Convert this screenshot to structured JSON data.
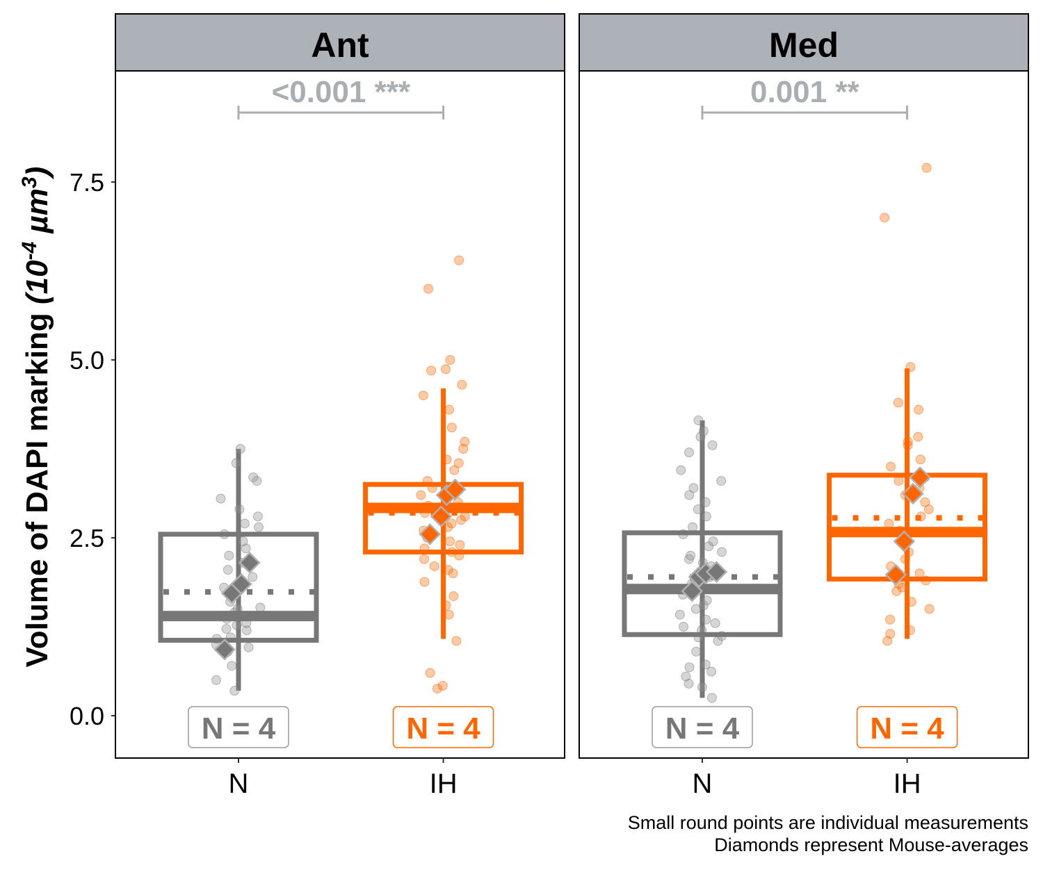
{
  "y_axis": {
    "label_main": "Volume of DAPI marking ",
    "label_unit_pre": "(10",
    "label_unit_exp1": "-4",
    "label_unit_mid": " µm",
    "label_unit_exp2": "3",
    "label_unit_post": ")",
    "ticks": [
      "0.0",
      "2.5",
      "5.0",
      "7.5"
    ]
  },
  "caption": {
    "line1": "Small round points are individual measurements",
    "line2": "Diamonds represent Mouse-averages"
  },
  "colors": {
    "N": "#777777",
    "IH": "#FF6600",
    "strip": "#ADB2B8",
    "pvalue": "#A9AEB3",
    "n_box_border_N": "#9A9A9A"
  },
  "chart_data": {
    "type": "boxplot",
    "ylim": [
      -0.6,
      9.1
    ],
    "y_ticks": [
      0.0,
      2.5,
      5.0,
      7.5
    ],
    "categories": [
      "N",
      "IH"
    ],
    "panels": [
      {
        "title": "Ant",
        "pvalue": "<0.001 ***",
        "groups": [
          {
            "name": "N",
            "n_label": "N = 4",
            "box": {
              "whisker_low": 0.35,
              "q1": 1.06,
              "median": 1.4,
              "mean": 1.74,
              "q3": 2.55,
              "whisker_high": 3.75
            },
            "mouse_averages": [
              0.93,
              1.72,
              1.85,
              2.15
            ],
            "points": [
              0.35,
              0.5,
              0.7,
              0.88,
              0.9,
              0.92,
              0.96,
              1.0,
              1.08,
              1.1,
              1.2,
              1.22,
              1.27,
              1.3,
              1.36,
              1.4,
              1.45,
              1.5,
              1.52,
              1.6,
              1.72,
              1.8,
              1.95,
              2.05,
              2.15,
              2.25,
              2.35,
              2.45,
              2.55,
              2.65,
              2.7,
              2.8,
              2.9,
              3.05,
              3.3,
              3.35,
              3.55,
              3.75
            ]
          },
          {
            "name": "IH",
            "n_label": "N = 4",
            "box": {
              "whisker_low": 1.08,
              "q1": 2.3,
              "median": 2.92,
              "mean": 2.85,
              "q3": 3.25,
              "whisker_high": 4.6
            },
            "mouse_averages": [
              2.55,
              2.8,
              3.1,
              3.18
            ],
            "points": [
              0.38,
              0.42,
              0.6,
              1.05,
              1.42,
              1.55,
              1.68,
              1.88,
              2.0,
              2.05,
              2.1,
              2.2,
              2.25,
              2.3,
              2.35,
              2.4,
              2.45,
              2.5,
              2.6,
              2.65,
              2.7,
              2.75,
              2.8,
              2.85,
              2.9,
              2.95,
              3.0,
              3.1,
              3.15,
              3.2,
              3.3,
              3.45,
              3.55,
              3.6,
              3.75,
              3.85,
              4.05,
              4.3,
              4.5,
              4.65,
              4.85,
              4.87,
              5.0,
              6.0,
              6.4
            ]
          }
        ]
      },
      {
        "title": "Med",
        "pvalue": "0.001 **",
        "groups": [
          {
            "name": "N",
            "n_label": "N = 4",
            "box": {
              "whisker_low": 0.25,
              "q1": 1.14,
              "median": 1.78,
              "mean": 1.95,
              "q3": 2.57,
              "whisker_high": 4.15
            },
            "mouse_averages": [
              1.75,
              1.95,
              2.0,
              2.02
            ],
            "points": [
              0.25,
              0.4,
              0.45,
              0.55,
              0.62,
              0.68,
              0.72,
              0.9,
              1.05,
              1.1,
              1.12,
              1.2,
              1.25,
              1.3,
              1.35,
              1.42,
              1.5,
              1.55,
              1.62,
              1.7,
              1.78,
              1.85,
              1.9,
              1.95,
              2.0,
              2.05,
              2.1,
              2.15,
              2.2,
              2.25,
              2.3,
              2.38,
              2.45,
              2.55,
              2.65,
              2.8,
              2.9,
              3.0,
              3.1,
              3.2,
              3.3,
              3.45,
              3.7,
              3.8,
              3.92,
              4.0,
              4.15
            ]
          },
          {
            "name": "IH",
            "n_label": "N = 4",
            "box": {
              "whisker_low": 1.08,
              "q1": 1.92,
              "median": 2.58,
              "mean": 2.78,
              "q3": 3.38,
              "whisker_high": 4.88
            },
            "mouse_averages": [
              1.98,
              2.45,
              3.12,
              3.35
            ],
            "points": [
              1.05,
              1.15,
              1.2,
              1.35,
              1.5,
              1.6,
              1.75,
              1.8,
              1.85,
              1.9,
              2.0,
              2.1,
              2.2,
              2.3,
              2.5,
              2.6,
              2.7,
              2.8,
              2.9,
              3.0,
              3.1,
              3.2,
              3.3,
              3.35,
              3.5,
              3.6,
              3.8,
              3.85,
              3.92,
              4.3,
              4.4,
              4.9,
              7.0,
              7.7
            ]
          }
        ]
      }
    ]
  }
}
